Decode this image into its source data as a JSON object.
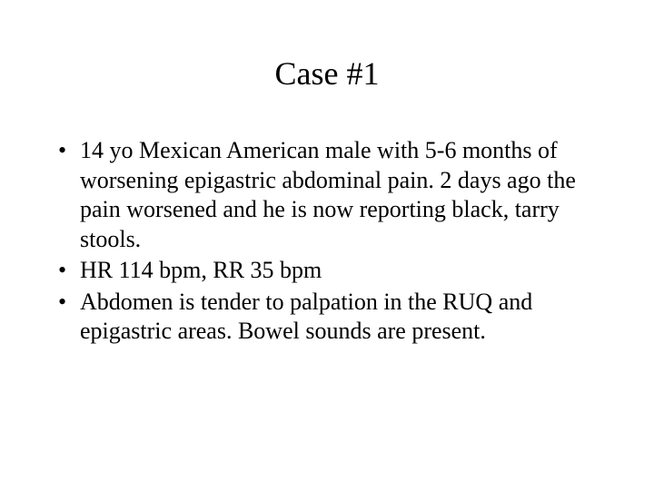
{
  "slide": {
    "title": "Case #1",
    "bullets": [
      "14 yo Mexican American male with 5-6 months of worsening epigastric abdominal pain.  2 days ago the pain worsened and he is now reporting black, tarry stools.",
      "HR 114 bpm, RR 35 bpm",
      "Abdomen is tender to palpation in the RUQ and epigastric areas.  Bowel sounds are present."
    ]
  },
  "style": {
    "background_color": "#ffffff",
    "text_color": "#000000",
    "font_family": "Times New Roman",
    "title_fontsize": 36,
    "body_fontsize": 26,
    "slide_width": 720,
    "slide_height": 540
  }
}
